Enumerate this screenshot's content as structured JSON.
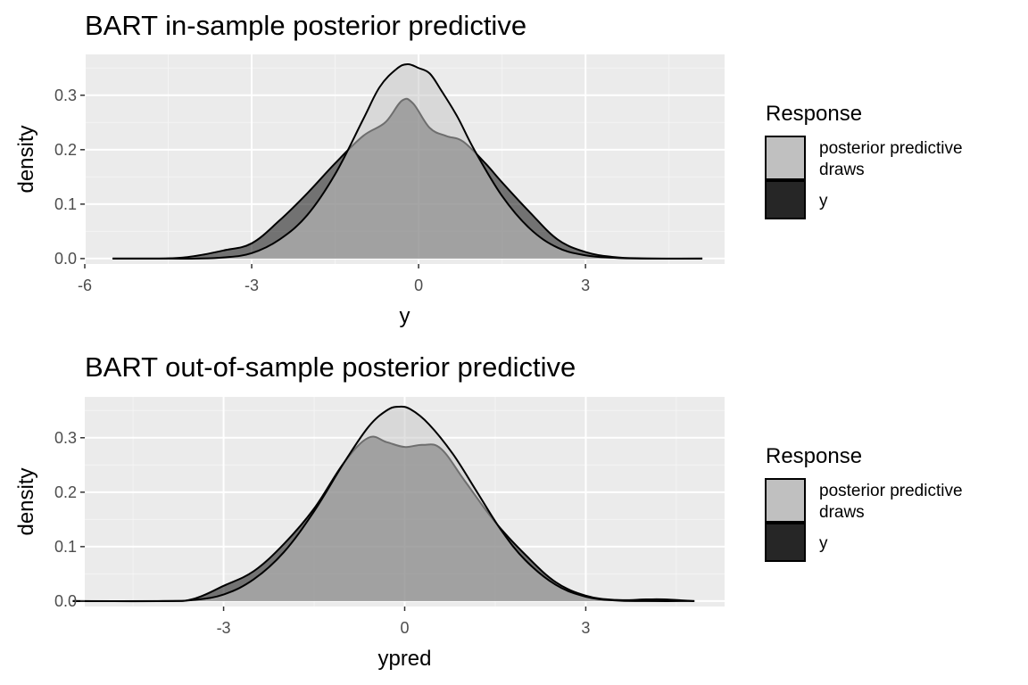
{
  "chart_data": [
    {
      "type": "area",
      "title": "BART in-sample posterior predictive",
      "xlabel": "y",
      "ylabel": "density",
      "xlim": [
        -6,
        5.5
      ],
      "ylim": [
        -0.01,
        0.375
      ],
      "x_ticks": [
        -6,
        -3,
        0,
        3
      ],
      "x_tick_labels": [
        "-6",
        "-3",
        "0",
        "3"
      ],
      "y_ticks": [
        0,
        0.1,
        0.2,
        0.3
      ],
      "y_tick_labels": [
        "0.0",
        "0.1",
        "0.2",
        "0.3"
      ],
      "grid": true,
      "legend": {
        "title": "Response",
        "position": "right",
        "entries": [
          {
            "label_lines": [
              "posterior predictive",
              "draws"
            ],
            "color": "#c0c0c0"
          },
          {
            "label_lines": [
              "y"
            ],
            "color": "#262626"
          }
        ]
      },
      "series": [
        {
          "key": "ppd",
          "x": [
            -5.5,
            -4.5,
            -4.0,
            -3.5,
            -3.0,
            -2.5,
            -2.0,
            -1.5,
            -1.0,
            -0.7,
            -0.4,
            -0.2,
            0.0,
            0.2,
            0.4,
            0.7,
            1.0,
            1.5,
            2.0,
            2.5,
            3.0,
            3.5,
            4.0,
            5.1
          ],
          "y": [
            0.0,
            0.0,
            0.0,
            0.002,
            0.01,
            0.035,
            0.08,
            0.155,
            0.255,
            0.315,
            0.348,
            0.357,
            0.35,
            0.34,
            0.31,
            0.26,
            0.2,
            0.115,
            0.055,
            0.02,
            0.006,
            0.0015,
            0.0,
            0.0
          ]
        },
        {
          "key": "y",
          "x": [
            -5.5,
            -4.5,
            -4.0,
            -3.5,
            -3.0,
            -2.5,
            -2.0,
            -1.5,
            -1.0,
            -0.6,
            -0.3,
            -0.1,
            0.2,
            0.5,
            0.8,
            1.2,
            1.5,
            2.0,
            2.5,
            3.0,
            3.5,
            4.0,
            5.1
          ],
          "y": [
            0.0,
            0.0005,
            0.005,
            0.015,
            0.028,
            0.07,
            0.12,
            0.175,
            0.225,
            0.25,
            0.29,
            0.285,
            0.24,
            0.225,
            0.215,
            0.175,
            0.14,
            0.085,
            0.035,
            0.012,
            0.003,
            0.0005,
            0.0
          ]
        }
      ]
    },
    {
      "type": "area",
      "title": "BART out-of-sample posterior predictive",
      "xlabel": "ypred",
      "ylabel": "density",
      "xlim": [
        -5.3,
        5.3
      ],
      "ylim": [
        -0.01,
        0.375
      ],
      "x_ticks": [
        -3,
        0,
        3
      ],
      "x_tick_labels": [
        "-3",
        "0",
        "3"
      ],
      "y_ticks": [
        0,
        0.1,
        0.2,
        0.3
      ],
      "y_tick_labels": [
        "0.0",
        "0.1",
        "0.2",
        "0.3"
      ],
      "grid": true,
      "legend": {
        "title": "Response",
        "position": "right",
        "entries": [
          {
            "label_lines": [
              "posterior predictive",
              "draws"
            ],
            "color": "#c0c0c0"
          },
          {
            "label_lines": [
              "y"
            ],
            "color": "#262626"
          }
        ]
      },
      "series": [
        {
          "key": "ppd",
          "x": [
            -5.5,
            -4.0,
            -3.5,
            -3.0,
            -2.5,
            -2.0,
            -1.5,
            -1.0,
            -0.6,
            -0.3,
            -0.1,
            0.1,
            0.4,
            0.8,
            1.2,
            1.6,
            2.0,
            2.5,
            3.0,
            3.5,
            4.0,
            4.8
          ],
          "y": [
            0.0,
            0.0,
            0.002,
            0.012,
            0.04,
            0.09,
            0.165,
            0.255,
            0.32,
            0.35,
            0.357,
            0.352,
            0.325,
            0.27,
            0.2,
            0.13,
            0.075,
            0.03,
            0.008,
            0.001,
            0.0,
            0.0
          ]
        },
        {
          "key": "y",
          "x": [
            -5.5,
            -4.0,
            -3.5,
            -3.0,
            -2.5,
            -2.0,
            -1.5,
            -1.0,
            -0.6,
            -0.3,
            0.0,
            0.3,
            0.6,
            1.0,
            1.5,
            2.0,
            2.5,
            3.0,
            3.5,
            4.0,
            4.3,
            4.8
          ],
          "y": [
            0.0,
            0.0,
            0.004,
            0.028,
            0.055,
            0.105,
            0.17,
            0.255,
            0.3,
            0.292,
            0.283,
            0.287,
            0.28,
            0.22,
            0.145,
            0.085,
            0.035,
            0.01,
            0.002,
            0.003,
            0.003,
            0.0
          ]
        }
      ]
    }
  ]
}
